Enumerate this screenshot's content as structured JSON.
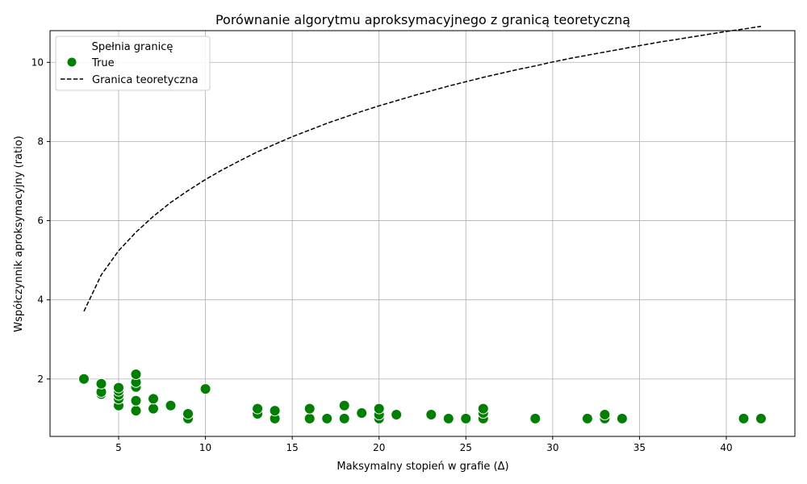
{
  "chart_data": {
    "type": "scatter",
    "title": "Porównanie algorytmu aproksymacyjnego z granicą teoretyczną",
    "xlabel": "Maksymalny stopień w grafie (Δ)",
    "ylabel": "Współczynnik aproksymacyjny (ratio)",
    "xlim": [
      1.05,
      43.95
    ],
    "ylim": [
      0.55,
      10.8
    ],
    "xticks": [
      5,
      10,
      15,
      20,
      25,
      30,
      35,
      40
    ],
    "yticks": [
      2,
      4,
      6,
      8,
      10
    ],
    "grid": true,
    "legend": {
      "placement": "top-left",
      "title": "Spełnia granicę",
      "entries": [
        {
          "label": "True",
          "kind": "marker",
          "color": "#008000"
        },
        {
          "label": "Granica teoretyczna",
          "kind": "dashed-line",
          "color": "#000000"
        }
      ]
    },
    "series": [
      {
        "name": "True",
        "color": "#008000",
        "points": [
          [
            3,
            2.0
          ],
          [
            4,
            1.62
          ],
          [
            4,
            1.67
          ],
          [
            4,
            1.88
          ],
          [
            5,
            1.33
          ],
          [
            5,
            1.5
          ],
          [
            5,
            1.6
          ],
          [
            5,
            1.7
          ],
          [
            5,
            1.78
          ],
          [
            6,
            1.2
          ],
          [
            6,
            1.45
          ],
          [
            6,
            1.8
          ],
          [
            6,
            1.92
          ],
          [
            6,
            2.12
          ],
          [
            7,
            1.25
          ],
          [
            7,
            1.5
          ],
          [
            8,
            1.33
          ],
          [
            9,
            1.0
          ],
          [
            9,
            1.12
          ],
          [
            10,
            1.75
          ],
          [
            13,
            1.12
          ],
          [
            13,
            1.25
          ],
          [
            14,
            1.0
          ],
          [
            14,
            1.2
          ],
          [
            16,
            1.0
          ],
          [
            16,
            1.25
          ],
          [
            17,
            1.0
          ],
          [
            18,
            1.0
          ],
          [
            18,
            1.33
          ],
          [
            19,
            1.14
          ],
          [
            20,
            1.0
          ],
          [
            20,
            1.1
          ],
          [
            20,
            1.25
          ],
          [
            21,
            1.1
          ],
          [
            23,
            1.1
          ],
          [
            24,
            1.0
          ],
          [
            25,
            1.0
          ],
          [
            26,
            1.0
          ],
          [
            26,
            1.14
          ],
          [
            26,
            1.25
          ],
          [
            29,
            1.0
          ],
          [
            32,
            1.0
          ],
          [
            33,
            1.0
          ],
          [
            33,
            1.1
          ],
          [
            34,
            1.0
          ],
          [
            41,
            1.0
          ],
          [
            42,
            1.0
          ]
        ]
      },
      {
        "name": "Granica teoretyczna",
        "color": "#000000",
        "style": "dashed",
        "points": [
          [
            3,
            3.71
          ],
          [
            4,
            4.63
          ],
          [
            5,
            5.24
          ],
          [
            6,
            5.71
          ],
          [
            7,
            6.11
          ],
          [
            8,
            6.46
          ],
          [
            9,
            6.76
          ],
          [
            10,
            7.04
          ],
          [
            11,
            7.29
          ],
          [
            12,
            7.52
          ],
          [
            13,
            7.74
          ],
          [
            14,
            7.93
          ],
          [
            15,
            8.12
          ],
          [
            16,
            8.29
          ],
          [
            17,
            8.46
          ],
          [
            18,
            8.61
          ],
          [
            19,
            8.76
          ],
          [
            20,
            8.9
          ],
          [
            21,
            9.03
          ],
          [
            22,
            9.16
          ],
          [
            23,
            9.28
          ],
          [
            24,
            9.4
          ],
          [
            25,
            9.51
          ],
          [
            26,
            9.62
          ],
          [
            27,
            9.72
          ],
          [
            28,
            9.82
          ],
          [
            29,
            9.91
          ],
          [
            30,
            10.01
          ],
          [
            31,
            10.1
          ],
          [
            32,
            10.18
          ],
          [
            33,
            10.26
          ],
          [
            34,
            10.34
          ],
          [
            35,
            10.42
          ],
          [
            36,
            10.5
          ],
          [
            37,
            10.57
          ],
          [
            38,
            10.64
          ],
          [
            39,
            10.71
          ],
          [
            40,
            10.78
          ],
          [
            41,
            10.84
          ],
          [
            42,
            10.91
          ]
        ]
      }
    ]
  }
}
